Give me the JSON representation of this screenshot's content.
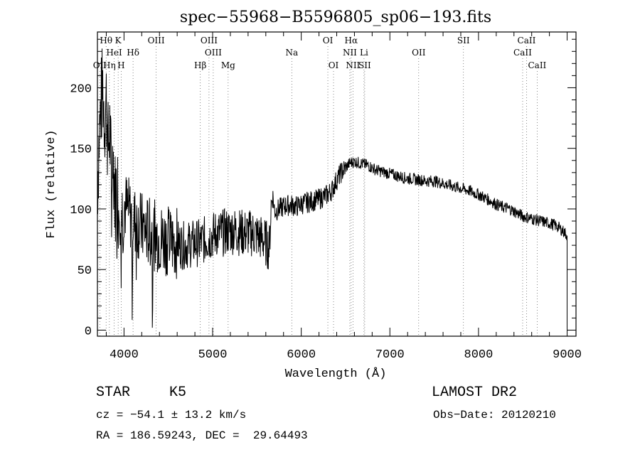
{
  "chart_data": {
    "type": "line",
    "title": "spec−55968−B5596805_sp06−193.fits",
    "xlabel": "Wavelength (Å)",
    "ylabel": "Flux (relative)",
    "xlim": [
      3700,
      9100
    ],
    "ylim": [
      -5,
      246
    ],
    "x_ticks": [
      4000,
      5000,
      6000,
      7000,
      8000,
      9000
    ],
    "y_ticks": [
      0,
      50,
      100,
      150,
      200
    ],
    "grid": false,
    "spectral_lines": [
      {
        "label": "Hθ",
        "wavelength": 3798,
        "row": 1
      },
      {
        "label": "K",
        "wavelength": 3934,
        "row": 1
      },
      {
        "label": "OIII",
        "wavelength": 4363,
        "row": 1
      },
      {
        "label": "OIII",
        "wavelength": 4959,
        "row": 1
      },
      {
        "label": "OI",
        "wavelength": 6300,
        "row": 1
      },
      {
        "label": "Hα",
        "wavelength": 6563,
        "row": 1
      },
      {
        "label": "SII",
        "wavelength": 7830,
        "row": 1
      },
      {
        "label": "CaII",
        "wavelength": 8542,
        "row": 1
      },
      {
        "label": "HeI",
        "wavelength": 3889,
        "row": 2
      },
      {
        "label": "Hδ",
        "wavelength": 4102,
        "row": 2
      },
      {
        "label": "OIII",
        "wavelength": 5007,
        "row": 2
      },
      {
        "label": "Na",
        "wavelength": 5893,
        "row": 2
      },
      {
        "label": "NII",
        "wavelength": 6548,
        "row": 2
      },
      {
        "label": "Li",
        "wavelength": 6708,
        "row": 2
      },
      {
        "label": "OII",
        "wavelength": 7325,
        "row": 2
      },
      {
        "label": "CaII",
        "wavelength": 8498,
        "row": 2
      },
      {
        "label": "OII",
        "wavelength": 3727,
        "row": 3
      },
      {
        "label": "Hη",
        "wavelength": 3835,
        "row": 3
      },
      {
        "label": "H",
        "wavelength": 3968,
        "row": 3
      },
      {
        "label": "Hβ",
        "wavelength": 4861,
        "row": 3
      },
      {
        "label": "Mg",
        "wavelength": 5175,
        "row": 3
      },
      {
        "label": "OI",
        "wavelength": 6364,
        "row": 3
      },
      {
        "label": "NII",
        "wavelength": 6583,
        "row": 3
      },
      {
        "label": "SII",
        "wavelength": 6716,
        "row": 3
      },
      {
        "label": "CaII",
        "wavelength": 8662,
        "row": 3
      }
    ],
    "series": [
      {
        "x": [
          3700,
          3720,
          3740,
          3760,
          3780,
          3800,
          3820,
          3840,
          3860,
          3880,
          3900,
          3920,
          3940,
          3960,
          3980,
          4000,
          4050,
          4100,
          4150,
          4200,
          4250,
          4300,
          4350,
          4400,
          4450,
          4500,
          4550,
          4600,
          4650,
          4700,
          4750,
          4800,
          4850,
          4900,
          4950,
          5000,
          5050,
          5100,
          5150,
          5200,
          5250,
          5300,
          5350,
          5400,
          5450,
          5500,
          5550,
          5600,
          5640,
          5660,
          5680,
          5700,
          5750,
          5800,
          5850,
          5900,
          5950,
          6000,
          6050,
          6100,
          6150,
          6200,
          6250,
          6300,
          6350,
          6400,
          6450,
          6500,
          6550,
          6600,
          6650,
          6700,
          6750,
          6800,
          6850,
          6900,
          6950,
          7000,
          7050,
          7100,
          7150,
          7200,
          7250,
          7300,
          7350,
          7400,
          7450,
          7500,
          7550,
          7600,
          7650,
          7700,
          7750,
          7800,
          7850,
          7900,
          7950,
          8000,
          8050,
          8100,
          8150,
          8200,
          8250,
          8300,
          8350,
          8400,
          8450,
          8500,
          8550,
          8600,
          8650,
          8700,
          8750,
          8800,
          8850,
          8900,
          8950,
          8980,
          9000
        ],
        "y": [
          120,
          160,
          185,
          200,
          175,
          190,
          150,
          165,
          120,
          140,
          110,
          125,
          100,
          115,
          95,
          105,
          98,
          92,
          88,
          85,
          82,
          80,
          78,
          76,
          75,
          74,
          72,
          72,
          70,
          70,
          71,
          72,
          72,
          74,
          76,
          78,
          80,
          80,
          81,
          82,
          82,
          81,
          80,
          80,
          80,
          78,
          76,
          72,
          68,
          105,
          110,
          98,
          100,
          102,
          103,
          103,
          102,
          104,
          105,
          106,
          107,
          108,
          110,
          112,
          116,
          124,
          130,
          134,
          138,
          139,
          138,
          137,
          136,
          134,
          132,
          131,
          130,
          129,
          128,
          127,
          126,
          125,
          125,
          124,
          124,
          123,
          123,
          123,
          122,
          121,
          120,
          119,
          118,
          117,
          116,
          115,
          113,
          112,
          110,
          108,
          106,
          104,
          102,
          101,
          100,
          98,
          96,
          94,
          93,
          92,
          91,
          90,
          89,
          88,
          87,
          85,
          82,
          80,
          78
        ]
      }
    ]
  },
  "info": {
    "object_type": "STAR",
    "subclass": "K5",
    "survey": "LAMOST DR2",
    "redshift": "cz = −54.1 ± 13.2 km/s",
    "obs_date": "Obs−Date: 20120210",
    "coords": "RA = 186.59243, DEC =  29.64493"
  }
}
